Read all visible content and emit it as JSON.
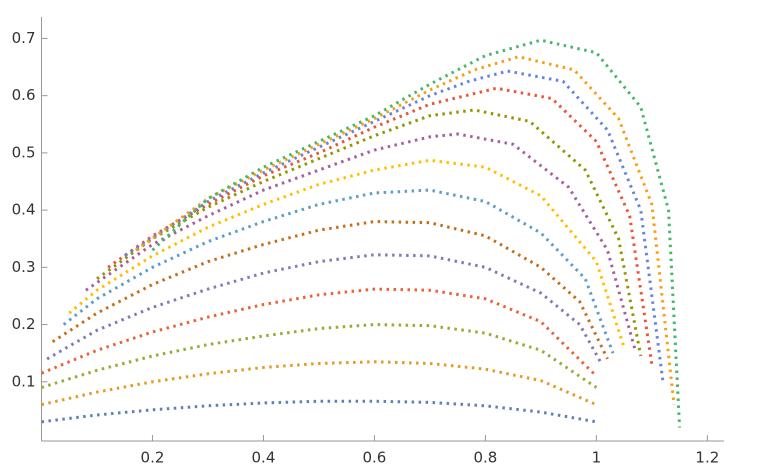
{
  "chart_data": {
    "type": "scatter",
    "xlim": [
      0,
      1.23
    ],
    "ylim": [
      0,
      0.72
    ],
    "xticks": [
      0.2,
      0.4,
      0.6,
      0.8,
      1.0,
      1.2
    ],
    "yticks": [
      0.1,
      0.2,
      0.3,
      0.4,
      0.5,
      0.6,
      0.7
    ],
    "series": [
      {
        "color": "#5E81B5",
        "x": [
          0,
          0.1,
          0.2,
          0.3,
          0.4,
          0.5,
          0.6,
          0.7,
          0.8,
          0.9,
          1.0
        ],
        "values": [
          0.03,
          0.042,
          0.051,
          0.058,
          0.063,
          0.066,
          0.066,
          0.064,
          0.058,
          0.047,
          0.03
        ]
      },
      {
        "color": "#E19C24",
        "x": [
          0,
          0.1,
          0.2,
          0.3,
          0.4,
          0.5,
          0.6,
          0.7,
          0.8,
          0.9,
          1.0
        ],
        "values": [
          0.06,
          0.082,
          0.1,
          0.114,
          0.125,
          0.132,
          0.135,
          0.132,
          0.122,
          0.102,
          0.06
        ]
      },
      {
        "color": "#8FB032",
        "x": [
          0,
          0.1,
          0.2,
          0.3,
          0.4,
          0.5,
          0.6,
          0.7,
          0.8,
          0.9,
          1.0
        ],
        "values": [
          0.09,
          0.12,
          0.145,
          0.165,
          0.18,
          0.193,
          0.2,
          0.198,
          0.185,
          0.155,
          0.09
        ]
      },
      {
        "color": "#EB6235",
        "x": [
          0,
          0.1,
          0.2,
          0.3,
          0.4,
          0.5,
          0.6,
          0.7,
          0.8,
          0.9,
          1.0
        ],
        "values": [
          0.115,
          0.155,
          0.187,
          0.213,
          0.235,
          0.252,
          0.262,
          0.26,
          0.245,
          0.205,
          0.11
        ]
      },
      {
        "color": "#8778B3",
        "x": [
          0.01,
          0.1,
          0.2,
          0.3,
          0.4,
          0.5,
          0.6,
          0.7,
          0.8,
          0.9,
          0.97,
          1.01
        ],
        "values": [
          0.14,
          0.19,
          0.23,
          0.262,
          0.29,
          0.31,
          0.322,
          0.32,
          0.3,
          0.255,
          0.2,
          0.13
        ]
      },
      {
        "color": "#C56E1A",
        "x": [
          0.02,
          0.1,
          0.2,
          0.3,
          0.4,
          0.5,
          0.6,
          0.7,
          0.8,
          0.9,
          0.97,
          1.02
        ],
        "values": [
          0.17,
          0.22,
          0.27,
          0.31,
          0.34,
          0.365,
          0.38,
          0.378,
          0.355,
          0.3,
          0.24,
          0.14
        ]
      },
      {
        "color": "#5D9EC7",
        "x": [
          0.04,
          0.1,
          0.2,
          0.3,
          0.4,
          0.5,
          0.6,
          0.7,
          0.8,
          0.9,
          0.98,
          1.03
        ],
        "values": [
          0.2,
          0.245,
          0.3,
          0.345,
          0.38,
          0.41,
          0.43,
          0.435,
          0.415,
          0.36,
          0.28,
          0.15
        ]
      },
      {
        "color": "#FFBF00",
        "x": [
          0.05,
          0.1,
          0.2,
          0.3,
          0.4,
          0.5,
          0.6,
          0.7,
          0.8,
          0.9,
          1.0,
          1.05
        ],
        "values": [
          0.22,
          0.26,
          0.32,
          0.37,
          0.41,
          0.445,
          0.47,
          0.487,
          0.475,
          0.425,
          0.31,
          0.16
        ]
      },
      {
        "color": "#A5609D",
        "x": [
          0.08,
          0.2,
          0.3,
          0.4,
          0.5,
          0.6,
          0.7,
          0.75,
          0.85,
          0.95,
          1.02,
          1.07
        ],
        "values": [
          0.26,
          0.34,
          0.39,
          0.435,
          0.47,
          0.505,
          0.528,
          0.533,
          0.515,
          0.44,
          0.33,
          0.155
        ]
      },
      {
        "color": "#929600",
        "x": [
          0.1,
          0.2,
          0.3,
          0.4,
          0.5,
          0.6,
          0.7,
          0.78,
          0.88,
          0.98,
          1.04,
          1.08
        ],
        "values": [
          0.28,
          0.35,
          0.405,
          0.45,
          0.49,
          0.53,
          0.565,
          0.575,
          0.555,
          0.47,
          0.35,
          0.145
        ]
      },
      {
        "color": "#E95536",
        "x": [
          0.12,
          0.2,
          0.3,
          0.4,
          0.5,
          0.6,
          0.7,
          0.82,
          0.92,
          1.0,
          1.06,
          1.1
        ],
        "values": [
          0.3,
          0.355,
          0.41,
          0.46,
          0.5,
          0.545,
          0.585,
          0.613,
          0.595,
          0.52,
          0.39,
          0.13
        ]
      },
      {
        "color": "#6685D9",
        "x": [
          0.15,
          0.3,
          0.4,
          0.5,
          0.6,
          0.7,
          0.77,
          0.84,
          0.94,
          1.02,
          1.08,
          1.12
        ],
        "values": [
          0.32,
          0.415,
          0.465,
          0.51,
          0.555,
          0.6,
          0.625,
          0.643,
          0.625,
          0.54,
          0.4,
          0.1
        ]
      },
      {
        "color": "#F89F13",
        "x": [
          0.17,
          0.3,
          0.4,
          0.5,
          0.6,
          0.7,
          0.78,
          0.86,
          0.96,
          1.04,
          1.1,
          1.14
        ],
        "values": [
          0.33,
          0.42,
          0.47,
          0.515,
          0.56,
          0.61,
          0.645,
          0.668,
          0.645,
          0.56,
          0.41,
          0.06
        ]
      },
      {
        "color": "#47B66F",
        "x": [
          0.2,
          0.3,
          0.4,
          0.5,
          0.6,
          0.7,
          0.8,
          0.9,
          1.0,
          1.08,
          1.13,
          1.15
        ],
        "values": [
          0.33,
          0.42,
          0.475,
          0.52,
          0.565,
          0.62,
          0.67,
          0.697,
          0.675,
          0.58,
          0.4,
          0.02
        ]
      }
    ]
  }
}
